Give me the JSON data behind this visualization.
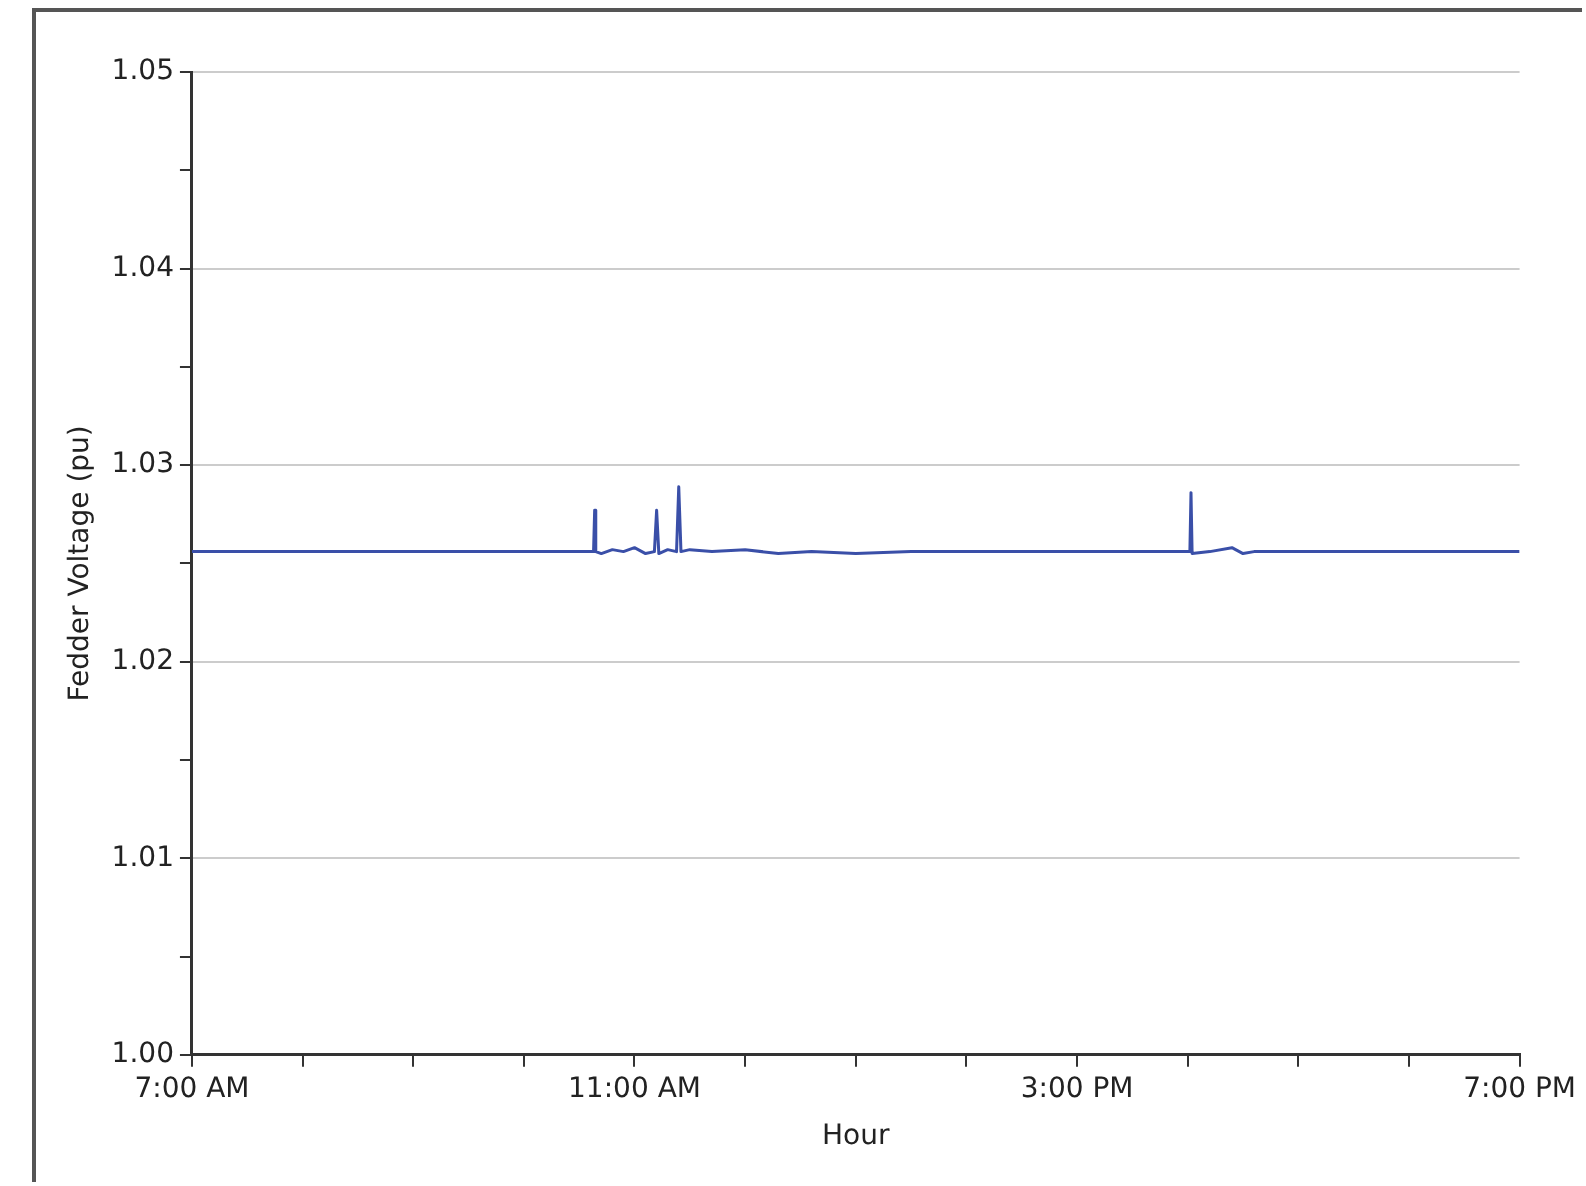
{
  "chart_data": {
    "type": "line",
    "xlabel": "Hour",
    "ylabel": "Fedder Voltage (pu)",
    "x": [
      7,
      8,
      9,
      10,
      10.63,
      10.64,
      10.65,
      10.7,
      10.8,
      10.9,
      11.0,
      11.1,
      11.18,
      11.2,
      11.22,
      11.3,
      11.38,
      11.4,
      11.42,
      11.5,
      11.7,
      12.0,
      12.3,
      12.6,
      13.0,
      13.5,
      14.5,
      15.5,
      16.02,
      16.03,
      16.04,
      16.2,
      16.4,
      16.5,
      16.6,
      17,
      18,
      19
    ],
    "series": [
      {
        "color": "#3a4fa8",
        "values": [
          1.0256,
          1.0256,
          1.0256,
          1.0256,
          1.0256,
          1.0277,
          1.0256,
          1.0255,
          1.0257,
          1.0256,
          1.0258,
          1.0255,
          1.0256,
          1.0277,
          1.0255,
          1.0257,
          1.0256,
          1.0289,
          1.0256,
          1.0257,
          1.0256,
          1.0257,
          1.0255,
          1.0256,
          1.0255,
          1.0256,
          1.0256,
          1.0256,
          1.0256,
          1.0286,
          1.0255,
          1.0256,
          1.0258,
          1.0255,
          1.0256,
          1.0256,
          1.0256,
          1.0256
        ]
      }
    ],
    "xlim": [
      7,
      19
    ],
    "xticks": [
      {
        "value": 7,
        "label": "7:00 AM"
      },
      {
        "value": 8,
        "label": null
      },
      {
        "value": 9,
        "label": null
      },
      {
        "value": 10,
        "label": null
      },
      {
        "value": 11,
        "label": "11:00 AM"
      },
      {
        "value": 12,
        "label": null
      },
      {
        "value": 13,
        "label": null
      },
      {
        "value": 14,
        "label": null
      },
      {
        "value": 15,
        "label": "3:00 PM"
      },
      {
        "value": 16,
        "label": null
      },
      {
        "value": 17,
        "label": null
      },
      {
        "value": 18,
        "label": null
      },
      {
        "value": 19,
        "label": "7:00 PM"
      }
    ],
    "ylim": [
      1.0,
      1.05
    ],
    "yticks": [
      {
        "value": 1.0,
        "label": "1.00"
      },
      {
        "value": 1.005,
        "label": null
      },
      {
        "value": 1.01,
        "label": "1.01"
      },
      {
        "value": 1.015,
        "label": null
      },
      {
        "value": 1.02,
        "label": "1.02"
      },
      {
        "value": 1.025,
        "label": null
      },
      {
        "value": 1.03,
        "label": "1.03"
      },
      {
        "value": 1.035,
        "label": null
      },
      {
        "value": 1.04,
        "label": "1.04"
      },
      {
        "value": 1.045,
        "label": null
      },
      {
        "value": 1.05,
        "label": "1.05"
      }
    ],
    "grid": "y",
    "marker": "none",
    "line_style": "solid"
  }
}
